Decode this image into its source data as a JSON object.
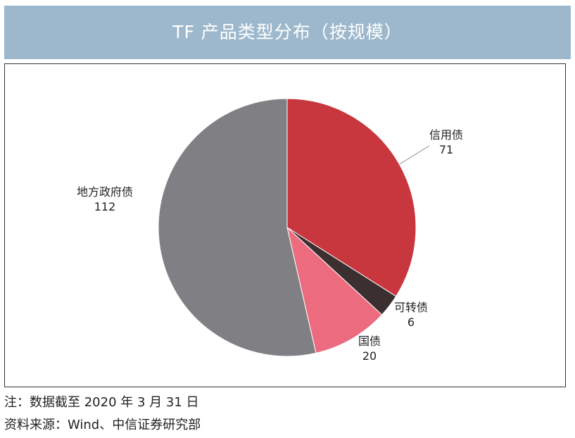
{
  "chart_data": {
    "type": "pie",
    "title": "TF 产品类型分布（按规模）",
    "slices": [
      {
        "label": "信用债",
        "value": 71,
        "color": "#c8363e"
      },
      {
        "label": "可转债",
        "value": 6,
        "color": "#3b2f2f"
      },
      {
        "label": "国债",
        "value": 20,
        "color": "#ec6b7e"
      },
      {
        "label": "地方政府债",
        "value": 112,
        "color": "#808084"
      }
    ]
  },
  "notes": {
    "note": "注：数据截至 2020 年 3 月 31 日",
    "source": "资料来源：Wind、中信证券研究部"
  }
}
